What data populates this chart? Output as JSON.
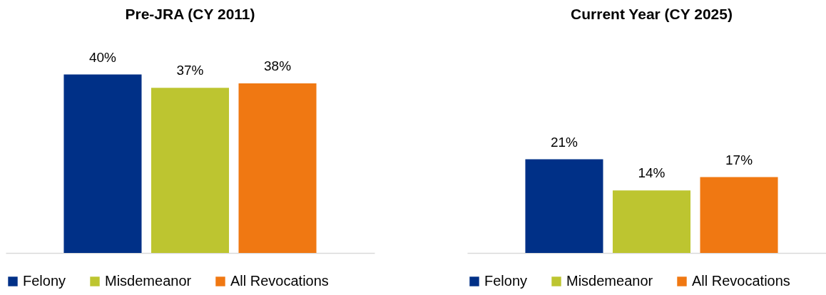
{
  "chart_data": [
    {
      "type": "bar",
      "title": "Pre-JRA (CY 2011)",
      "categories": [
        null
      ],
      "legend": "bottom",
      "grid": false,
      "series": [
        {
          "name": "Felony",
          "color": "#003087",
          "values": [
            40
          ],
          "value_labels": [
            "40%"
          ]
        },
        {
          "name": "Misdemeanor",
          "color": "#bdc530",
          "values": [
            37
          ],
          "value_labels": [
            "37%"
          ]
        },
        {
          "name": "All Revocations",
          "color": "#f07812",
          "values": [
            38
          ],
          "value_labels": [
            "38%"
          ]
        }
      ]
    },
    {
      "type": "bar",
      "title": "Current Year (CY 2025)",
      "categories": [
        null
      ],
      "legend": "bottom",
      "grid": false,
      "series": [
        {
          "name": "Felony",
          "color": "#003087",
          "values": [
            21
          ],
          "value_labels": [
            "21%"
          ]
        },
        {
          "name": "Misdemeanor",
          "color": "#bdc530",
          "values": [
            14
          ],
          "value_labels": [
            "14%"
          ]
        },
        {
          "name": "All Revocations",
          "color": "#f07812",
          "values": [
            17
          ],
          "value_labels": [
            "17%"
          ]
        }
      ]
    }
  ]
}
